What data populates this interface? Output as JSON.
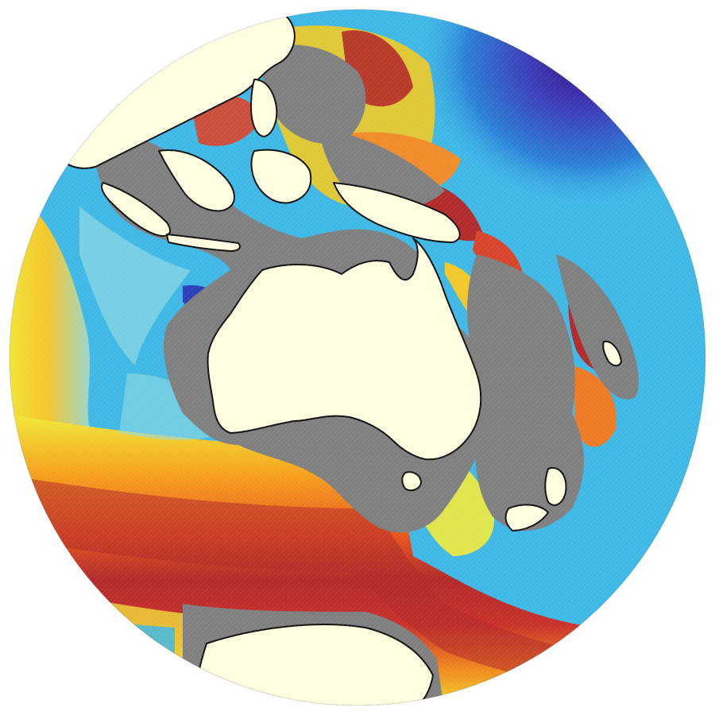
{
  "map": {
    "projection": "orthographic",
    "centered_on": "Australia",
    "colors": {
      "land": "#fffde0",
      "continental_shelf": "#7f7f7f",
      "coastline": "#111111",
      "ocean_palette": [
        "#3a0f8c",
        "#2b6fd6",
        "#3fb8e6",
        "#8fd8e0",
        "#f1ea3a",
        "#f7a21d",
        "#e8571e",
        "#b22a2a"
      ]
    },
    "features": {
      "landmasses": [
        "australia",
        "asia",
        "borneo",
        "new-guinea",
        "antarctica",
        "new-zealand",
        "tasmania",
        "sumatra",
        "java",
        "new-caledonia"
      ],
      "ocean_bands": [
        "warm-equatorial-west-pacific",
        "cold-north-pacific",
        "southern-ocean-red-band",
        "tasman-yellow",
        "indian-ocean-yellow"
      ]
    }
  }
}
